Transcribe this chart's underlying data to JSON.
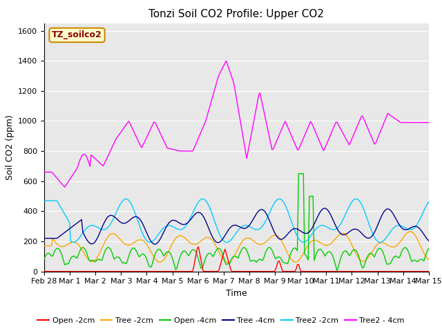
{
  "title": "Tonzi Soil CO2 Profile: Upper CO2",
  "ylabel": "Soil CO2 (ppm)",
  "xlabel": "Time",
  "watermark": "TZ_soilco2",
  "ylim": [
    0,
    1650
  ],
  "yticks": [
    0,
    200,
    400,
    600,
    800,
    1000,
    1200,
    1400,
    1600
  ],
  "xtick_labels": [
    "Feb 28",
    "Mar 1",
    "Mar 2",
    "Mar 3",
    "Mar 4",
    "Mar 5",
    "Mar 6",
    "Mar 7",
    "Mar 8",
    "Mar 9",
    "Mar 10",
    "Mar 11",
    "Mar 12",
    "Mar 13",
    "Mar 14",
    "Mar 15"
  ],
  "series_colors": {
    "Open -2cm": "#ff0000",
    "Tree -2cm": "#ffa500",
    "Open -4cm": "#00cc00",
    "Tree -4cm": "#00008b",
    "Tree2 -2cm": "#00ccff",
    "Tree2 - 4cm": "#ff00ff"
  },
  "background_color": "#e8e8e8",
  "title_fontsize": 11,
  "axis_label_fontsize": 9,
  "tick_label_fontsize": 8,
  "legend_fontsize": 8
}
